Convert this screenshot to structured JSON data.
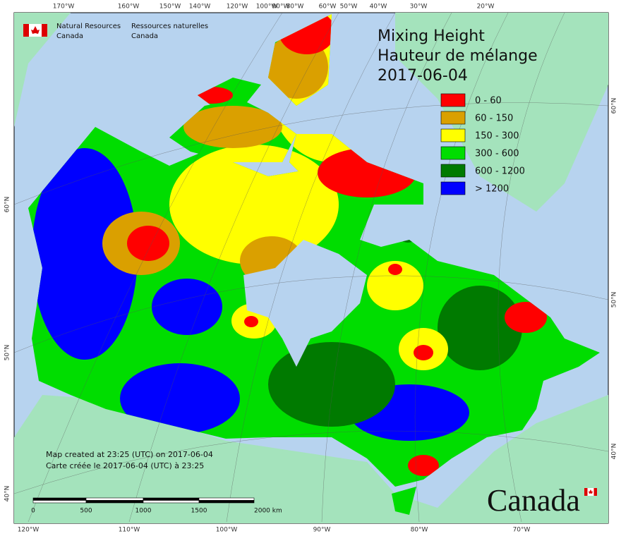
{
  "header": {
    "agency_en": [
      "Natural Resources",
      "Canada"
    ],
    "agency_fr": [
      "Ressources naturelles",
      "Canada"
    ]
  },
  "title": [
    "Mixing Height",
    "Hauteur de mélange",
    "2017-06-04"
  ],
  "legend": [
    {
      "label": "0 - 60",
      "color": "#ff0000"
    },
    {
      "label": "60 - 150",
      "color": "#daa000"
    },
    {
      "label": "150 - 300",
      "color": "#ffff00"
    },
    {
      "label": "300 - 600",
      "color": "#00dd00"
    },
    {
      "label": "600 - 1200",
      "color": "#007a00"
    },
    {
      "label": "> 1200",
      "color": "#0000ff"
    }
  ],
  "graticule": {
    "top": [
      "170°W",
      "160°W",
      "150°W",
      "140°W",
      "120°W",
      "100°W",
      "90°W",
      "80°W",
      "60°W",
      "50°W",
      "40°W",
      "30°W",
      "20°W"
    ],
    "bottom": [
      "120°W",
      "110°W",
      "100°W",
      "90°W",
      "80°W",
      "70°W"
    ],
    "left": [
      "60°N",
      "50°N",
      "40°N"
    ],
    "right": [
      "60°N",
      "50°N",
      "40°N"
    ]
  },
  "notes": [
    "Map created at 23:25 (UTC) on 2017-06-04",
    "Carte créée le 2017-06-04 (UTC) à 23:25"
  ],
  "scale_bar": [
    "0",
    "500",
    "1000",
    "1500",
    "2000 km"
  ],
  "wordmark": "Canada"
}
